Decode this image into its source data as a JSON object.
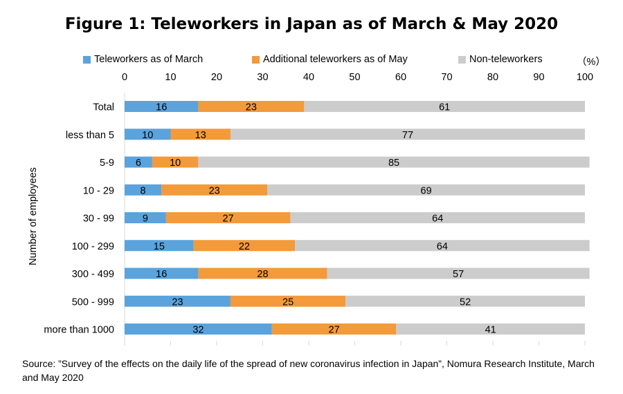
{
  "title": "Figure 1: Teleworkers in Japan as of March & May 2020",
  "legend": {
    "items": [
      {
        "label": "Teleworkers as of March",
        "color": "#5BA3DC"
      },
      {
        "label": "Additional teleworkers as of May",
        "color": "#F39A3B"
      },
      {
        "label": "Non-teleworkers",
        "color": "#CCCCCC"
      }
    ],
    "unit": "（%）"
  },
  "chart_data": {
    "type": "bar",
    "orientation": "horizontal",
    "stacked": true,
    "ylabel": "Number of employees",
    "xlim": [
      0,
      100
    ],
    "x_ticks": [
      "0",
      "10",
      "20",
      "30",
      "40",
      "50",
      "60",
      "70",
      "80",
      "90",
      "100"
    ],
    "x_axis_position": "top",
    "categories": [
      "Total",
      "less than 5",
      "5-9",
      "10 - 29",
      "30 - 99",
      "100 - 299",
      "300 - 499",
      "500 - 999",
      "more than 1000"
    ],
    "series": [
      {
        "name": "Teleworkers as of March",
        "color": "#5BA3DC",
        "values": [
          16,
          10,
          6,
          8,
          9,
          15,
          16,
          23,
          32
        ]
      },
      {
        "name": "Additional teleworkers as of May",
        "color": "#F39A3B",
        "values": [
          23,
          13,
          10,
          23,
          27,
          22,
          28,
          25,
          27
        ]
      },
      {
        "name": "Non-teleworkers",
        "color": "#CCCCCC",
        "values": [
          61,
          77,
          85,
          69,
          64,
          64,
          57,
          52,
          41
        ]
      }
    ],
    "data_labels": true,
    "grid": false
  },
  "source": "Source: ”Survey of the effects on the daily life of the spread of new coronavirus infection in Japan”, Nomura Research Institute, March and May 2020"
}
